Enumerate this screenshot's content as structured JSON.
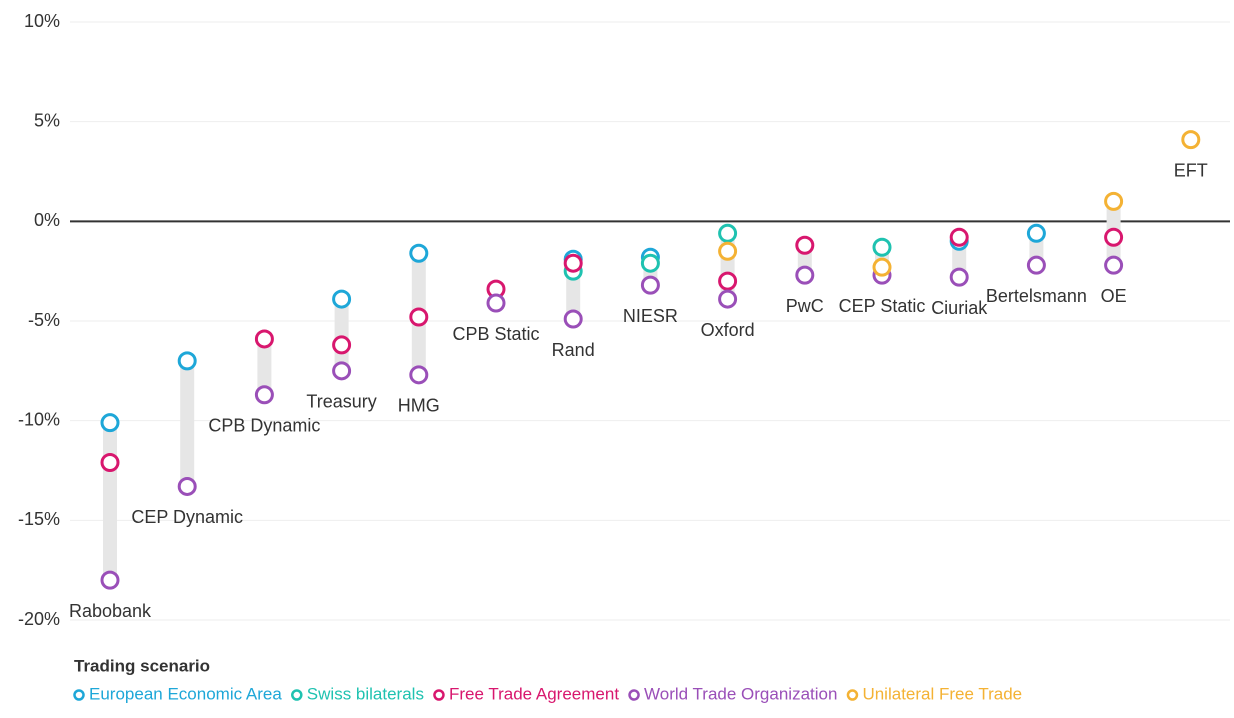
{
  "chart_data": {
    "type": "dot-range",
    "categories": [
      "Rabobank",
      "CEP Dynamic",
      "CPB Dynamic",
      "Treasury",
      "HMG",
      "CPB Static",
      "Rand",
      "NIESR",
      "Oxford",
      "PwC",
      "CEP Static",
      "Ciuriak",
      "Bertelsmann",
      "OE",
      "EFT"
    ],
    "series": [
      {
        "name": "European Economic Area",
        "color": "#1ea7d8",
        "values": [
          -10.1,
          -7.0,
          null,
          -3.9,
          -1.6,
          null,
          -1.9,
          -1.8,
          null,
          null,
          null,
          -1.0,
          -0.6,
          null,
          null
        ]
      },
      {
        "name": "Swiss bilaterals",
        "color": "#1fc2b0",
        "values": [
          null,
          null,
          null,
          null,
          null,
          null,
          -2.5,
          -2.1,
          -0.6,
          null,
          -1.3,
          null,
          null,
          null,
          null
        ]
      },
      {
        "name": "Free Trade Agreement",
        "color": "#d8176e",
        "values": [
          -12.1,
          null,
          -5.9,
          -6.2,
          -4.8,
          -3.4,
          -2.1,
          null,
          -3.0,
          -1.2,
          null,
          -0.8,
          null,
          -0.8,
          null
        ]
      },
      {
        "name": "World Trade Organization",
        "color": "#9a4fb8",
        "values": [
          -18.0,
          -13.3,
          -8.7,
          -7.5,
          -7.7,
          -4.1,
          -4.9,
          -3.2,
          -3.9,
          -2.7,
          -2.7,
          -2.8,
          -2.2,
          -2.2,
          null
        ]
      },
      {
        "name": "Unilateral Free Trade",
        "color": "#f4b234",
        "values": [
          null,
          null,
          null,
          null,
          null,
          null,
          null,
          null,
          -1.5,
          null,
          -2.3,
          null,
          null,
          1.0,
          4.1
        ]
      }
    ],
    "ylim": [
      -20,
      10
    ],
    "yticks": [
      {
        "value": 10,
        "label": "10%"
      },
      {
        "value": 5,
        "label": "5%"
      },
      {
        "value": 0,
        "label": "0%"
      },
      {
        "value": -5,
        "label": "-5%"
      },
      {
        "value": -10,
        "label": "-10%"
      },
      {
        "value": -15,
        "label": "-15%"
      },
      {
        "value": -20,
        "label": "-20%"
      }
    ],
    "grid": true,
    "legend_title": "Trading scenario",
    "legend_position": "bottom"
  }
}
